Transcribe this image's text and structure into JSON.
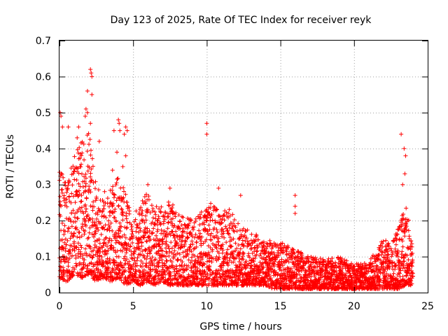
{
  "chart_data": {
    "type": "scatter",
    "title": "Day 123 of 2025, Rate Of TEC Index for receiver reyk",
    "xlabel": "GPS time / hours",
    "ylabel": "ROTI / TECUs",
    "xlim": [
      0,
      25
    ],
    "ylim": [
      0,
      0.7
    ],
    "xticks": [
      0,
      5,
      10,
      15,
      20,
      25
    ],
    "yticks": [
      0,
      0.1,
      0.2,
      0.3,
      0.4,
      0.5,
      0.6,
      0.7
    ],
    "grid": true,
    "marker": "+",
    "color": "#ff0000",
    "envelope": {
      "x": [
        0,
        0.5,
        1,
        1.5,
        2,
        2.5,
        3,
        3.5,
        4,
        4.5,
        5,
        5.5,
        6,
        6.5,
        7,
        7.5,
        8,
        8.5,
        9,
        9.5,
        10,
        10.5,
        11,
        11.5,
        12,
        12.5,
        13,
        13.5,
        14,
        14.5,
        15,
        15.5,
        16,
        16.5,
        17,
        17.5,
        18,
        18.5,
        19,
        19.5,
        20,
        20.5,
        21,
        21.5,
        22,
        22.5,
        23,
        23.5,
        24
      ],
      "low": [
        0.04,
        0.03,
        0.05,
        0.04,
        0.05,
        0.03,
        0.04,
        0.03,
        0.04,
        0.02,
        0.03,
        0.02,
        0.03,
        0.02,
        0.03,
        0.02,
        0.02,
        0.02,
        0.02,
        0.02,
        0.02,
        0.02,
        0.02,
        0.02,
        0.02,
        0.02,
        0.02,
        0.02,
        0.02,
        0.01,
        0.01,
        0.01,
        0.01,
        0.01,
        0.01,
        0.01,
        0.01,
        0.01,
        0.01,
        0.01,
        0.01,
        0.01,
        0.01,
        0.01,
        0.01,
        0.01,
        0.01,
        0.02,
        0.02
      ],
      "high": [
        0.35,
        0.3,
        0.38,
        0.42,
        0.45,
        0.3,
        0.28,
        0.3,
        0.32,
        0.28,
        0.22,
        0.25,
        0.28,
        0.25,
        0.24,
        0.26,
        0.22,
        0.22,
        0.2,
        0.22,
        0.24,
        0.26,
        0.22,
        0.25,
        0.2,
        0.18,
        0.17,
        0.16,
        0.15,
        0.14,
        0.14,
        0.13,
        0.12,
        0.11,
        0.1,
        0.1,
        0.09,
        0.1,
        0.1,
        0.09,
        0.08,
        0.08,
        0.09,
        0.12,
        0.15,
        0.14,
        0.18,
        0.25,
        0.15
      ]
    },
    "outliers": [
      {
        "x": 0.1,
        "y": 0.49
      },
      {
        "x": 0.05,
        "y": 0.5
      },
      {
        "x": 0.2,
        "y": 0.46
      },
      {
        "x": 0.6,
        "y": 0.46
      },
      {
        "x": 1.9,
        "y": 0.56
      },
      {
        "x": 2.1,
        "y": 0.62
      },
      {
        "x": 2.15,
        "y": 0.61
      },
      {
        "x": 2.2,
        "y": 0.6
      },
      {
        "x": 2.2,
        "y": 0.55
      },
      {
        "x": 1.8,
        "y": 0.51
      },
      {
        "x": 1.9,
        "y": 0.5
      },
      {
        "x": 1.75,
        "y": 0.49
      },
      {
        "x": 2.1,
        "y": 0.47
      },
      {
        "x": 1.3,
        "y": 0.46
      },
      {
        "x": 1.2,
        "y": 0.43
      },
      {
        "x": 2.7,
        "y": 0.42
      },
      {
        "x": 3.7,
        "y": 0.45
      },
      {
        "x": 4.0,
        "y": 0.48
      },
      {
        "x": 4.05,
        "y": 0.47
      },
      {
        "x": 4.1,
        "y": 0.45
      },
      {
        "x": 4.5,
        "y": 0.46
      },
      {
        "x": 4.6,
        "y": 0.45
      },
      {
        "x": 4.4,
        "y": 0.44
      },
      {
        "x": 3.9,
        "y": 0.39
      },
      {
        "x": 4.5,
        "y": 0.38
      },
      {
        "x": 4.3,
        "y": 0.35
      },
      {
        "x": 3.6,
        "y": 0.34
      },
      {
        "x": 10.0,
        "y": 0.47
      },
      {
        "x": 10.0,
        "y": 0.44
      },
      {
        "x": 10.8,
        "y": 0.29
      },
      {
        "x": 12.3,
        "y": 0.27
      },
      {
        "x": 16.0,
        "y": 0.27
      },
      {
        "x": 16.0,
        "y": 0.24
      },
      {
        "x": 16.0,
        "y": 0.22
      },
      {
        "x": 23.2,
        "y": 0.44
      },
      {
        "x": 23.4,
        "y": 0.4
      },
      {
        "x": 23.5,
        "y": 0.38
      },
      {
        "x": 23.45,
        "y": 0.33
      },
      {
        "x": 23.3,
        "y": 0.3
      },
      {
        "x": 7.5,
        "y": 0.29
      },
      {
        "x": 6.0,
        "y": 0.3
      }
    ]
  }
}
